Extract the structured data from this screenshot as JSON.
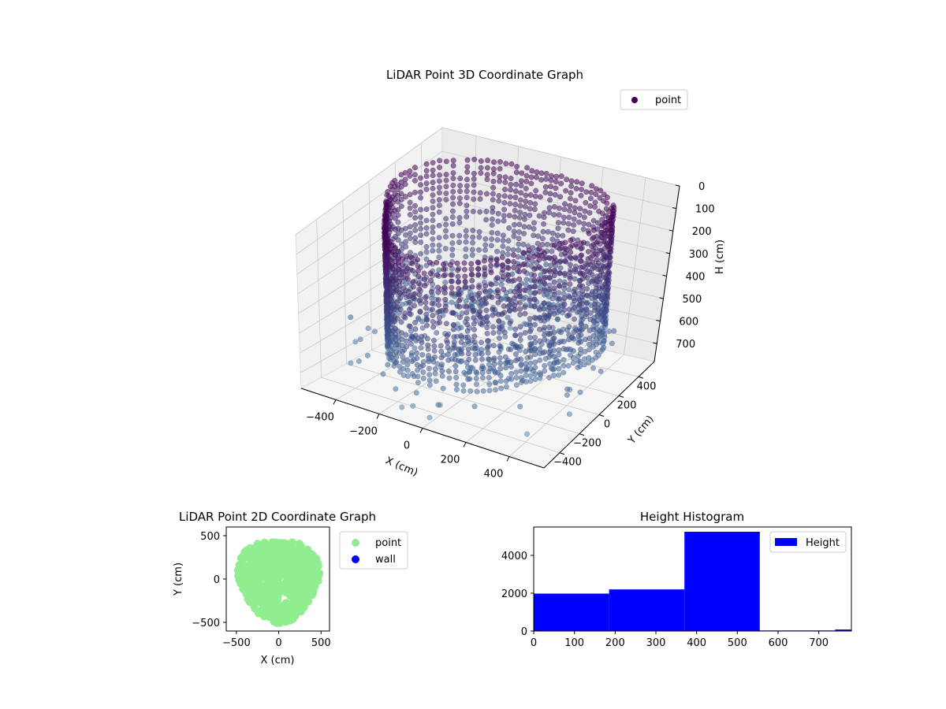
{
  "chart_data": [
    {
      "type": "scatter",
      "title": "LiDAR Point 3D Coordinate Graph",
      "xlabel": "X (cm)",
      "ylabel": "Y (cm)",
      "zlabel": "H (cm)",
      "x_ticks": [
        "−400",
        "−200",
        "0",
        "200",
        "400"
      ],
      "y_ticks": [
        "−400",
        "−200",
        "0",
        "200",
        "400"
      ],
      "z_ticks": [
        "0",
        "100",
        "200",
        "300",
        "400",
        "500",
        "600",
        "700"
      ],
      "xlim": [
        -560,
        560
      ],
      "ylim": [
        -560,
        560
      ],
      "zlim": [
        0,
        780
      ],
      "z_inverted": true,
      "grid": true,
      "legend": {
        "position": "top-right",
        "entries": [
          "point"
        ]
      },
      "colors": {
        "point": "#440154",
        "mid": "#3b528b",
        "far": "#5e8fb0"
      },
      "wall_radius_cm": 500
    },
    {
      "type": "scatter",
      "title": "LiDAR Point 2D Coordinate Graph",
      "xlabel": "X (cm)",
      "ylabel": "Y (cm)",
      "x_ticks": [
        "−500",
        "0",
        "500"
      ],
      "y_ticks": [
        "500",
        "0",
        "−500"
      ],
      "xlim": [
        -620,
        600
      ],
      "ylim": [
        -600,
        600
      ],
      "legend": {
        "position": "right",
        "entries": [
          "point",
          "wall"
        ]
      },
      "colors": {
        "point": "#90ee90",
        "wall": "#0000ff"
      },
      "disc_radius_cm": 500
    },
    {
      "type": "bar",
      "title": "Height Histogram",
      "bin_edges": [
        0,
        185,
        370,
        555,
        740,
        780
      ],
      "values": [
        1980,
        2200,
        5250,
        30,
        80
      ],
      "x_ticks": [
        "0",
        "100",
        "200",
        "300",
        "400",
        "500",
        "600",
        "700"
      ],
      "y_ticks": [
        "0",
        "2000",
        "4000"
      ],
      "xlim": [
        0,
        780
      ],
      "ylim": [
        0,
        5500
      ],
      "legend": {
        "position": "top-right",
        "entries": [
          "Height"
        ]
      },
      "colors": {
        "bar": "#0000ff"
      }
    }
  ]
}
